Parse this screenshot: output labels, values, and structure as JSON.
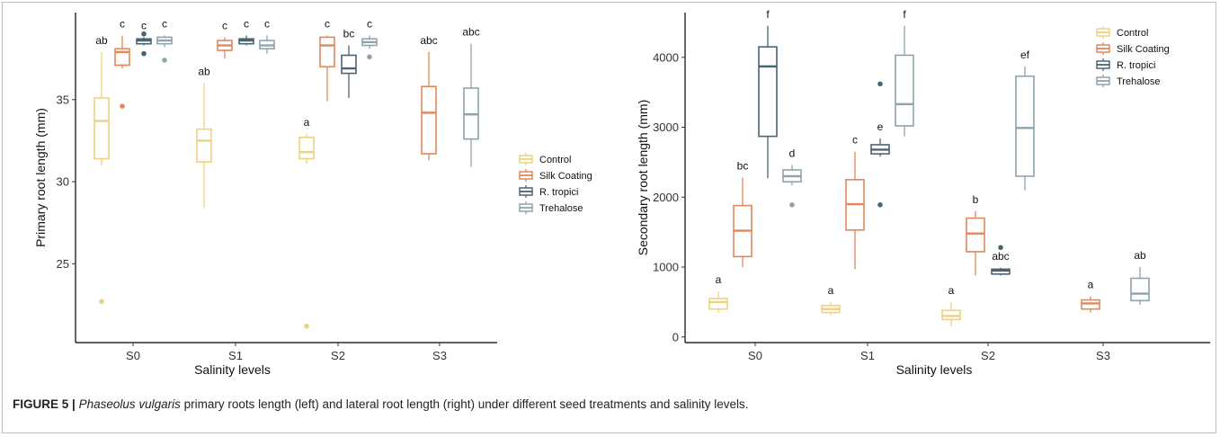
{
  "colors": {
    "Control": "#EFD27E",
    "Silk Coating": "#E2885B",
    "R. tropici": "#4A6472",
    "Trehalose": "#8FA3AD"
  },
  "caption": {
    "label": "FIGURE 5 |",
    "species": "Phaseolus vulgaris",
    "text": " primary roots length (left) and lateral root length (right) under different seed treatments and salinity levels."
  },
  "chart_data": [
    {
      "type": "box",
      "xlabel": "Salinity levels",
      "ylabel": "Primary root length (mm)",
      "ylim": [
        20.2,
        40.3
      ],
      "yticks": [
        25,
        30,
        35
      ],
      "categories": [
        "S0",
        "S1",
        "S2",
        "S3"
      ],
      "legend": [
        "Control",
        "Silk Coating",
        "R. tropici",
        "Trehalose"
      ],
      "legend_position": "right",
      "series": [
        {
          "name": "Control",
          "boxes": [
            {
              "category": "S0",
              "min": 31.0,
              "q1": 31.4,
              "median": 33.7,
              "q3": 35.1,
              "max": 37.9,
              "outliers": [
                22.7
              ],
              "label": "ab"
            },
            {
              "category": "S1",
              "min": 28.4,
              "q1": 31.2,
              "median": 32.5,
              "q3": 33.2,
              "max": 36.0,
              "outliers": [],
              "label": "ab"
            },
            {
              "category": "S2",
              "min": 31.1,
              "q1": 31.4,
              "median": 31.8,
              "q3": 32.7,
              "max": 32.9,
              "outliers": [
                21.2
              ],
              "label": "a"
            }
          ]
        },
        {
          "name": "Silk Coating",
          "boxes": [
            {
              "category": "S0",
              "min": 36.9,
              "q1": 37.1,
              "median": 37.9,
              "q3": 38.1,
              "max": 38.9,
              "outliers": [
                34.6
              ],
              "label": "c"
            },
            {
              "category": "S1",
              "min": 37.5,
              "q1": 38.0,
              "median": 38.3,
              "q3": 38.6,
              "max": 38.8,
              "outliers": [],
              "label": "c"
            },
            {
              "category": "S2",
              "min": 34.9,
              "q1": 37.0,
              "median": 38.3,
              "q3": 38.8,
              "max": 38.9,
              "outliers": [],
              "label": "c"
            },
            {
              "category": "S3",
              "min": 31.3,
              "q1": 31.7,
              "median": 34.2,
              "q3": 35.8,
              "max": 37.9,
              "outliers": [],
              "label": "abc"
            }
          ]
        },
        {
          "name": "R. tropici",
          "boxes": [
            {
              "category": "S0",
              "min": 38.3,
              "q1": 38.4,
              "median": 38.6,
              "q3": 38.7,
              "max": 38.8,
              "outliers": [
                37.8,
                39.0
              ],
              "label": "c"
            },
            {
              "category": "S1",
              "min": 38.3,
              "q1": 38.4,
              "median": 38.6,
              "q3": 38.7,
              "max": 38.9,
              "outliers": [],
              "label": "c"
            },
            {
              "category": "S2",
              "min": 35.1,
              "q1": 36.6,
              "median": 36.9,
              "q3": 37.7,
              "max": 38.3,
              "outliers": [],
              "label": "bc"
            }
          ]
        },
        {
          "name": "Trehalose",
          "boxes": [
            {
              "category": "S0",
              "min": 38.2,
              "q1": 38.4,
              "median": 38.6,
              "q3": 38.8,
              "max": 38.9,
              "outliers": [
                37.4
              ],
              "label": "c"
            },
            {
              "category": "S1",
              "min": 37.8,
              "q1": 38.1,
              "median": 38.3,
              "q3": 38.6,
              "max": 38.9,
              "outliers": [],
              "label": "c"
            },
            {
              "category": "S2",
              "min": 38.1,
              "q1": 38.3,
              "median": 38.5,
              "q3": 38.7,
              "max": 38.9,
              "outliers": [
                37.6
              ],
              "label": "c"
            },
            {
              "category": "S3",
              "min": 30.9,
              "q1": 32.6,
              "median": 34.1,
              "q3": 35.7,
              "max": 38.4,
              "outliers": [],
              "label": "abc"
            }
          ]
        }
      ]
    },
    {
      "type": "box",
      "xlabel": "Salinity levels",
      "ylabel": "Secondary root length (mm)",
      "ylim": [
        -80,
        4640
      ],
      "yticks": [
        0,
        1000,
        2000,
        3000,
        4000
      ],
      "categories": [
        "S0",
        "S1",
        "S2",
        "S3"
      ],
      "legend": [
        "Control",
        "Silk Coating",
        "R. tropici",
        "Trehalose"
      ],
      "legend_position": "top-right",
      "series": [
        {
          "name": "Control",
          "boxes": [
            {
              "category": "S0",
              "min": 350,
              "q1": 400,
              "median": 500,
              "q3": 550,
              "max": 650,
              "outliers": [],
              "label": "a"
            },
            {
              "category": "S1",
              "min": 310,
              "q1": 350,
              "median": 400,
              "q3": 450,
              "max": 500,
              "outliers": [],
              "label": "a"
            },
            {
              "category": "S2",
              "min": 150,
              "q1": 250,
              "median": 300,
              "q3": 380,
              "max": 500,
              "outliers": [],
              "label": "a"
            }
          ]
        },
        {
          "name": "Silk Coating",
          "boxes": [
            {
              "category": "S0",
              "min": 1000,
              "q1": 1150,
              "median": 1520,
              "q3": 1880,
              "max": 2280,
              "outliers": [],
              "label": "bc"
            },
            {
              "category": "S1",
              "min": 970,
              "q1": 1530,
              "median": 1900,
              "q3": 2250,
              "max": 2650,
              "outliers": [],
              "label": "c"
            },
            {
              "category": "S2",
              "min": 880,
              "q1": 1220,
              "median": 1480,
              "q3": 1700,
              "max": 1800,
              "outliers": [],
              "label": "b"
            },
            {
              "category": "S3",
              "min": 350,
              "q1": 400,
              "median": 480,
              "q3": 530,
              "max": 580,
              "outliers": [],
              "label": "a"
            }
          ]
        },
        {
          "name": "R. tropici",
          "boxes": [
            {
              "category": "S0",
              "min": 2270,
              "q1": 2870,
              "median": 3870,
              "q3": 4150,
              "max": 4450,
              "outliers": [],
              "label": "f"
            },
            {
              "category": "S1",
              "min": 2580,
              "q1": 2620,
              "median": 2680,
              "q3": 2750,
              "max": 2840,
              "outliers": [
                3620,
                1890
              ],
              "label": "e"
            },
            {
              "category": "S2",
              "min": 880,
              "q1": 900,
              "median": 950,
              "q3": 970,
              "max": 990,
              "outliers": [
                1280
              ],
              "label": "abc"
            }
          ]
        },
        {
          "name": "Trehalose",
          "boxes": [
            {
              "category": "S0",
              "min": 2170,
              "q1": 2220,
              "median": 2300,
              "q3": 2390,
              "max": 2460,
              "outliers": [
                1890
              ],
              "label": "d"
            },
            {
              "category": "S1",
              "min": 2870,
              "q1": 3020,
              "median": 3330,
              "q3": 4030,
              "max": 4450,
              "outliers": [],
              "label": "f"
            },
            {
              "category": "S2",
              "min": 2100,
              "q1": 2300,
              "median": 2990,
              "q3": 3730,
              "max": 3870,
              "outliers": [],
              "label": "ef"
            },
            {
              "category": "S3",
              "min": 460,
              "q1": 520,
              "median": 620,
              "q3": 840,
              "max": 1000,
              "outliers": [],
              "label": "ab"
            }
          ]
        }
      ]
    }
  ]
}
